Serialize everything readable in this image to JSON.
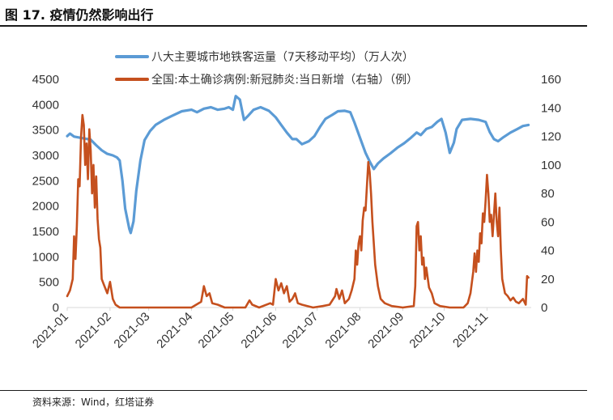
{
  "figure": {
    "title": "图 17. 疫情仍然影响出行",
    "source": "资料来源：Wind，红塔证券"
  },
  "colors": {
    "blue": "#5B9BD5",
    "orange": "#C5501E",
    "text": "#333333",
    "axis": "#D9D9D9"
  },
  "chart_data": {
    "type": "line",
    "title": "",
    "dual_axis": true,
    "x_tick_labels": [
      "2021-01",
      "2021-02",
      "2021-03",
      "2021-04",
      "2021-05",
      "2021-06",
      "2021-07",
      "2021-08",
      "2021-09",
      "2021-10",
      "2021-11"
    ],
    "x_range": [
      "2021-01-01",
      "2021-12-03"
    ],
    "y_left": {
      "range": [
        0,
        4500
      ],
      "ticks": [
        0,
        500,
        1000,
        1500,
        2000,
        2500,
        3000,
        3500,
        4000,
        4500
      ]
    },
    "y_right": {
      "range": [
        0,
        160
      ],
      "ticks": [
        0,
        20,
        40,
        60,
        80,
        100,
        120,
        140,
        160
      ]
    },
    "grid": false,
    "legend_position": "top",
    "series": [
      {
        "name": "八大主要城市地铁客运量（7天移动平均）（万人次）",
        "axis": "left",
        "color": "#5B9BD5",
        "points": [
          [
            "2021-01-01",
            3380
          ],
          [
            "2021-01-03",
            3430
          ],
          [
            "2021-01-06",
            3370
          ],
          [
            "2021-01-10",
            3350
          ],
          [
            "2021-01-14",
            3330
          ],
          [
            "2021-01-18",
            3310
          ],
          [
            "2021-01-22",
            3200
          ],
          [
            "2021-01-26",
            3100
          ],
          [
            "2021-01-30",
            3030
          ],
          [
            "2021-02-03",
            3000
          ],
          [
            "2021-02-06",
            2960
          ],
          [
            "2021-02-08",
            2900
          ],
          [
            "2021-02-10",
            2500
          ],
          [
            "2021-02-12",
            1950
          ],
          [
            "2021-02-15",
            1550
          ],
          [
            "2021-02-16",
            1470
          ],
          [
            "2021-02-18",
            1700
          ],
          [
            "2021-02-20",
            2300
          ],
          [
            "2021-02-23",
            2900
          ],
          [
            "2021-02-26",
            3300
          ],
          [
            "2021-03-02",
            3480
          ],
          [
            "2021-03-06",
            3600
          ],
          [
            "2021-03-12",
            3700
          ],
          [
            "2021-03-18",
            3780
          ],
          [
            "2021-03-25",
            3870
          ],
          [
            "2021-04-01",
            3900
          ],
          [
            "2021-04-05",
            3850
          ],
          [
            "2021-04-10",
            3920
          ],
          [
            "2021-04-15",
            3950
          ],
          [
            "2021-04-20",
            3900
          ],
          [
            "2021-04-25",
            3920
          ],
          [
            "2021-04-28",
            3950
          ],
          [
            "2021-05-01",
            3900
          ],
          [
            "2021-05-03",
            4170
          ],
          [
            "2021-05-06",
            4100
          ],
          [
            "2021-05-09",
            3700
          ],
          [
            "2021-05-12",
            3780
          ],
          [
            "2021-05-16",
            3900
          ],
          [
            "2021-05-21",
            3950
          ],
          [
            "2021-05-27",
            3880
          ],
          [
            "2021-06-01",
            3750
          ],
          [
            "2021-06-05",
            3600
          ],
          [
            "2021-06-09",
            3450
          ],
          [
            "2021-06-13",
            3320
          ],
          [
            "2021-06-16",
            3320
          ],
          [
            "2021-06-20",
            3220
          ],
          [
            "2021-06-25",
            3280
          ],
          [
            "2021-06-29",
            3380
          ],
          [
            "2021-07-03",
            3560
          ],
          [
            "2021-07-07",
            3720
          ],
          [
            "2021-07-12",
            3800
          ],
          [
            "2021-07-16",
            3870
          ],
          [
            "2021-07-21",
            3880
          ],
          [
            "2021-07-25",
            3850
          ],
          [
            "2021-07-28",
            3650
          ],
          [
            "2021-08-01",
            3350
          ],
          [
            "2021-08-05",
            3050
          ],
          [
            "2021-08-08",
            2880
          ],
          [
            "2021-08-11",
            2730
          ],
          [
            "2021-08-14",
            2840
          ],
          [
            "2021-08-18",
            2940
          ],
          [
            "2021-08-23",
            3040
          ],
          [
            "2021-08-28",
            3150
          ],
          [
            "2021-09-02",
            3240
          ],
          [
            "2021-09-07",
            3350
          ],
          [
            "2021-09-11",
            3450
          ],
          [
            "2021-09-14",
            3400
          ],
          [
            "2021-09-18",
            3520
          ],
          [
            "2021-09-22",
            3560
          ],
          [
            "2021-09-26",
            3660
          ],
          [
            "2021-09-29",
            3720
          ],
          [
            "2021-10-02",
            3450
          ],
          [
            "2021-10-05",
            3050
          ],
          [
            "2021-10-08",
            3250
          ],
          [
            "2021-10-10",
            3520
          ],
          [
            "2021-10-14",
            3700
          ],
          [
            "2021-10-20",
            3720
          ],
          [
            "2021-10-26",
            3700
          ],
          [
            "2021-10-31",
            3660
          ],
          [
            "2021-11-03",
            3460
          ],
          [
            "2021-11-06",
            3320
          ],
          [
            "2021-11-09",
            3280
          ],
          [
            "2021-11-13",
            3360
          ],
          [
            "2021-11-18",
            3450
          ],
          [
            "2021-11-23",
            3520
          ],
          [
            "2021-11-27",
            3580
          ],
          [
            "2021-12-01",
            3600
          ]
        ]
      },
      {
        "name": "全国:本土确诊病例:新冠肺炎:当日新增（右轴）（例）",
        "axis": "right",
        "color": "#C5501E",
        "points": [
          [
            "2021-01-01",
            8
          ],
          [
            "2021-01-03",
            12
          ],
          [
            "2021-01-05",
            20
          ],
          [
            "2021-01-06",
            50
          ],
          [
            "2021-01-07",
            34
          ],
          [
            "2021-01-08",
            57
          ],
          [
            "2021-01-09",
            90
          ],
          [
            "2021-01-10",
            85
          ],
          [
            "2021-01-11",
            120
          ],
          [
            "2021-01-12",
            135
          ],
          [
            "2021-01-13",
            128
          ],
          [
            "2021-01-14",
            100
          ],
          [
            "2021-01-15",
            115
          ],
          [
            "2021-01-16",
            90
          ],
          [
            "2021-01-17",
            125
          ],
          [
            "2021-01-18",
            110
          ],
          [
            "2021-01-19",
            80
          ],
          [
            "2021-01-20",
            100
          ],
          [
            "2021-01-21",
            70
          ],
          [
            "2021-01-22",
            92
          ],
          [
            "2021-01-23",
            62
          ],
          [
            "2021-01-24",
            48
          ],
          [
            "2021-01-25",
            42
          ],
          [
            "2021-01-26",
            20
          ],
          [
            "2021-01-28",
            15
          ],
          [
            "2021-01-30",
            10
          ],
          [
            "2021-02-01",
            18
          ],
          [
            "2021-02-03",
            6
          ],
          [
            "2021-02-05",
            2
          ],
          [
            "2021-02-08",
            0
          ],
          [
            "2021-02-20",
            0
          ],
          [
            "2021-03-15",
            0
          ],
          [
            "2021-04-01",
            0
          ],
          [
            "2021-04-08",
            4
          ],
          [
            "2021-04-10",
            15
          ],
          [
            "2021-04-12",
            8
          ],
          [
            "2021-04-14",
            10
          ],
          [
            "2021-04-16",
            3
          ],
          [
            "2021-04-20",
            2
          ],
          [
            "2021-04-25",
            0
          ],
          [
            "2021-05-10",
            0
          ],
          [
            "2021-05-13",
            5
          ],
          [
            "2021-05-15",
            2
          ],
          [
            "2021-05-20",
            0
          ],
          [
            "2021-05-28",
            3
          ],
          [
            "2021-05-30",
            2
          ],
          [
            "2021-06-01",
            20
          ],
          [
            "2021-06-03",
            12
          ],
          [
            "2021-06-05",
            17
          ],
          [
            "2021-06-07",
            10
          ],
          [
            "2021-06-09",
            15
          ],
          [
            "2021-06-11",
            4
          ],
          [
            "2021-06-13",
            6
          ],
          [
            "2021-06-15",
            10
          ],
          [
            "2021-06-17",
            3
          ],
          [
            "2021-06-20",
            2
          ],
          [
            "2021-06-24",
            1
          ],
          [
            "2021-06-28",
            0
          ],
          [
            "2021-07-05",
            1
          ],
          [
            "2021-07-10",
            2
          ],
          [
            "2021-07-14",
            8
          ],
          [
            "2021-07-15",
            13
          ],
          [
            "2021-07-17",
            6
          ],
          [
            "2021-07-19",
            12
          ],
          [
            "2021-07-21",
            3
          ],
          [
            "2021-07-24",
            6
          ],
          [
            "2021-07-26",
            12
          ],
          [
            "2021-07-28",
            20
          ],
          [
            "2021-07-29",
            40
          ],
          [
            "2021-07-30",
            30
          ],
          [
            "2021-07-31",
            45
          ],
          [
            "2021-08-01",
            50
          ],
          [
            "2021-08-02",
            40
          ],
          [
            "2021-08-03",
            61
          ],
          [
            "2021-08-04",
            70
          ],
          [
            "2021-08-05",
            68
          ],
          [
            "2021-08-06",
            85
          ],
          [
            "2021-08-07",
            102
          ],
          [
            "2021-08-08",
            95
          ],
          [
            "2021-08-09",
            80
          ],
          [
            "2021-08-10",
            60
          ],
          [
            "2021-08-11",
            45
          ],
          [
            "2021-08-12",
            30
          ],
          [
            "2021-08-14",
            15
          ],
          [
            "2021-08-16",
            6
          ],
          [
            "2021-08-19",
            3
          ],
          [
            "2021-08-24",
            1
          ],
          [
            "2021-09-01",
            0
          ],
          [
            "2021-09-09",
            1
          ],
          [
            "2021-09-10",
            15
          ],
          [
            "2021-09-11",
            57
          ],
          [
            "2021-09-12",
            60
          ],
          [
            "2021-09-13",
            40
          ],
          [
            "2021-09-14",
            50
          ],
          [
            "2021-09-15",
            30
          ],
          [
            "2021-09-16",
            35
          ],
          [
            "2021-09-17",
            20
          ],
          [
            "2021-09-18",
            28
          ],
          [
            "2021-09-20",
            14
          ],
          [
            "2021-09-22",
            10
          ],
          [
            "2021-09-24",
            3
          ],
          [
            "2021-09-28",
            1
          ],
          [
            "2021-10-05",
            0
          ],
          [
            "2021-10-15",
            0
          ],
          [
            "2021-10-18",
            3
          ],
          [
            "2021-10-20",
            10
          ],
          [
            "2021-10-22",
            25
          ],
          [
            "2021-10-23",
            38
          ],
          [
            "2021-10-24",
            25
          ],
          [
            "2021-10-25",
            40
          ],
          [
            "2021-10-26",
            32
          ],
          [
            "2021-10-27",
            52
          ],
          [
            "2021-10-28",
            45
          ],
          [
            "2021-10-29",
            66
          ],
          [
            "2021-10-30",
            60
          ],
          [
            "2021-10-31",
            75
          ],
          [
            "2021-11-01",
            93
          ],
          [
            "2021-11-02",
            80
          ],
          [
            "2021-11-03",
            60
          ],
          [
            "2021-11-04",
            65
          ],
          [
            "2021-11-05",
            50
          ],
          [
            "2021-11-06",
            65
          ],
          [
            "2021-11-07",
            80
          ],
          [
            "2021-11-08",
            60
          ],
          [
            "2021-11-09",
            50
          ],
          [
            "2021-11-10",
            70
          ],
          [
            "2021-11-11",
            40
          ],
          [
            "2021-11-12",
            20
          ],
          [
            "2021-11-14",
            10
          ],
          [
            "2021-11-16",
            8
          ],
          [
            "2021-11-18",
            5
          ],
          [
            "2021-11-20",
            7
          ],
          [
            "2021-11-22",
            4
          ],
          [
            "2021-11-24",
            3
          ],
          [
            "2021-11-27",
            6
          ],
          [
            "2021-11-29",
            2
          ],
          [
            "2021-11-30",
            22
          ],
          [
            "2021-12-01",
            21
          ]
        ]
      }
    ]
  }
}
